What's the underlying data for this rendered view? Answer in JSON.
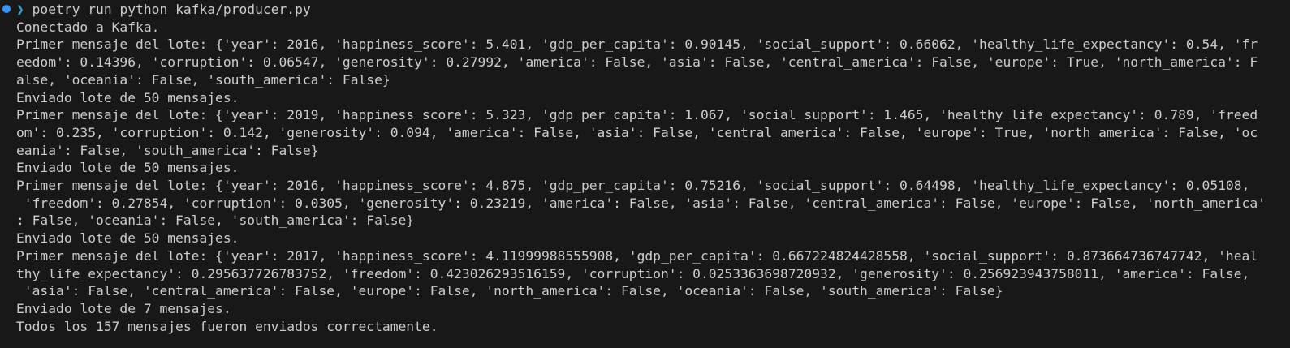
{
  "prompt": {
    "symbol": "❯",
    "command": "poetry run python kafka/producer.py"
  },
  "output": [
    "Conectado a Kafka.",
    "Primer mensaje del lote: {'year': 2016, 'happiness_score': 5.401, 'gdp_per_capita': 0.90145, 'social_support': 0.66062, 'healthy_life_expectancy': 0.54, 'fr",
    "eedom': 0.14396, 'corruption': 0.06547, 'generosity': 0.27992, 'america': False, 'asia': False, 'central_america': False, 'europe': True, 'north_america': F",
    "alse, 'oceania': False, 'south_america': False}",
    "Enviado lote de 50 mensajes.",
    "Primer mensaje del lote: {'year': 2019, 'happiness_score': 5.323, 'gdp_per_capita': 1.067, 'social_support': 1.465, 'healthy_life_expectancy': 0.789, 'freed",
    "om': 0.235, 'corruption': 0.142, 'generosity': 0.094, 'america': False, 'asia': False, 'central_america': False, 'europe': True, 'north_america': False, 'oc",
    "eania': False, 'south_america': False}",
    "Enviado lote de 50 mensajes.",
    "Primer mensaje del lote: {'year': 2016, 'happiness_score': 4.875, 'gdp_per_capita': 0.75216, 'social_support': 0.64498, 'healthy_life_expectancy': 0.05108,",
    " 'freedom': 0.27854, 'corruption': 0.0305, 'generosity': 0.23219, 'america': False, 'asia': False, 'central_america': False, 'europe': False, 'north_america'",
    ": False, 'oceania': False, 'south_america': False}",
    "Enviado lote de 50 mensajes.",
    "Primer mensaje del lote: {'year': 2017, 'happiness_score': 4.11999988555908, 'gdp_per_capita': 0.667224824428558, 'social_support': 0.873664736747742, 'heal",
    "thy_life_expectancy': 0.295637726783752, 'freedom': 0.423026293516159, 'corruption': 0.0253363698720932, 'generosity': 0.256923943758011, 'america': False,",
    " 'asia': False, 'central_america': False, 'europe': False, 'north_america': False, 'oceania': False, 'south_america': False}",
    "Enviado lote de 7 mensajes.",
    "Todos los 157 mensajes fueron enviados correctamente."
  ]
}
